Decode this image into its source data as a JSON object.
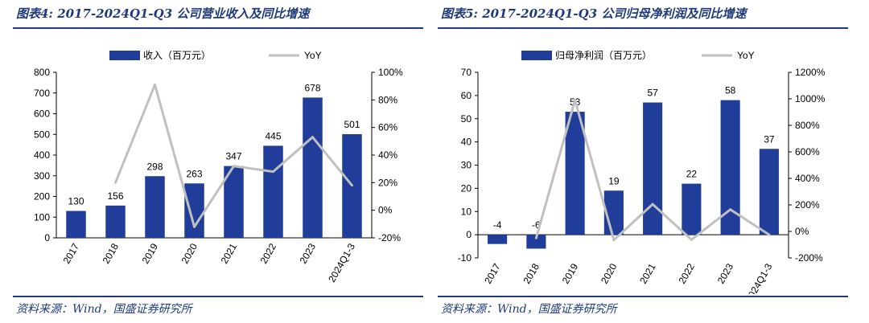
{
  "source_text": "资料来源：Wind，国盛证券研究所",
  "chart_data": [
    {
      "type": "bar",
      "title": "图表4:  2017-2024Q1-Q3 公司营业收入及同比增速",
      "categories": [
        "2017",
        "2018",
        "2019",
        "2020",
        "2021",
        "2022",
        "2023",
        "2024Q1-3"
      ],
      "series": [
        {
          "name": "收入（百万元）",
          "type": "bar",
          "axis": "left",
          "color": "#1f3d99",
          "values": [
            130,
            156,
            298,
            263,
            347,
            445,
            678,
            501
          ],
          "labels": [
            "130",
            "156",
            "298",
            "263",
            "347",
            "445",
            "678",
            "501"
          ]
        },
        {
          "name": "YoY",
          "type": "line",
          "axis": "right",
          "color": "#c0c0c0",
          "values": [
            null,
            20,
            91,
            -12,
            32,
            28,
            53,
            18
          ]
        }
      ],
      "ylim": [
        0,
        800
      ],
      "yticks": [
        0,
        100,
        200,
        300,
        400,
        500,
        600,
        700,
        800
      ],
      "ytick_labels": [
        "0",
        "100",
        "200",
        "300",
        "400",
        "500",
        "600",
        "700",
        "800"
      ],
      "y2lim": [
        -20,
        100
      ],
      "y2ticks": [
        -20,
        0,
        20,
        40,
        60,
        80,
        100
      ],
      "y2tick_labels": [
        "-20%",
        "0%",
        "20%",
        "40%",
        "60%",
        "80%",
        "100%"
      ],
      "legend_position": "top"
    },
    {
      "type": "bar",
      "title": "图表5:  2017-2024Q1-Q3 公司归母净利润及同比增速",
      "categories": [
        "2017",
        "2018",
        "2019",
        "2020",
        "2021",
        "2022",
        "2023",
        "2024Q1-3"
      ],
      "series": [
        {
          "name": "归母净利润（百万元）",
          "type": "bar",
          "axis": "left",
          "color": "#1f3d99",
          "values": [
            -4,
            -6,
            53,
            19,
            57,
            22,
            58,
            37
          ],
          "labels": [
            "-4",
            "-6",
            "53",
            "19",
            "57",
            "22",
            "58",
            "37"
          ]
        },
        {
          "name": "YoY",
          "type": "line",
          "axis": "right",
          "color": "#c0c0c0",
          "values": [
            null,
            -50,
            990,
            -65,
            205,
            -62,
            165,
            -25
          ]
        }
      ],
      "ylim": [
        -10,
        70
      ],
      "yticks": [
        -10,
        0,
        10,
        20,
        30,
        40,
        50,
        60,
        70
      ],
      "ytick_labels": [
        "-10",
        "0",
        "10",
        "20",
        "30",
        "40",
        "50",
        "60",
        "70"
      ],
      "y2lim": [
        -200,
        1200
      ],
      "y2ticks": [
        -200,
        0,
        200,
        400,
        600,
        800,
        1000,
        1200
      ],
      "y2tick_labels": [
        "-200%",
        "0%",
        "200%",
        "400%",
        "600%",
        "800%",
        "1000%",
        "1200%"
      ],
      "legend_position": "top"
    }
  ]
}
